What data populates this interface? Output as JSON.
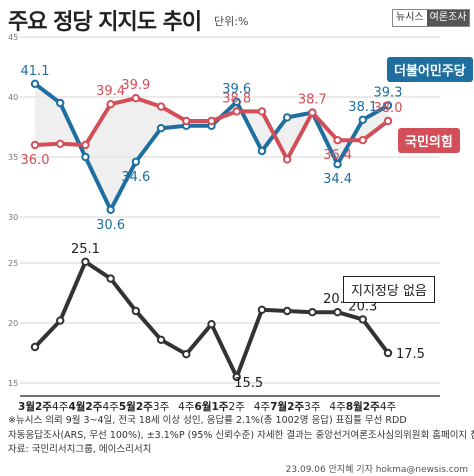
{
  "header": {
    "title": "주요 정당 지지도 추이",
    "unit": "단위:%",
    "brand_left": "뉴시스",
    "brand_right": "여론조사"
  },
  "chart_data": [
    {
      "type": "line",
      "categories": [
        "3월2주",
        "4주",
        "4월2주",
        "4주",
        "5월2주",
        "3주",
        "4주",
        "6월1주",
        "2주",
        "4주",
        "7월2주",
        "3주",
        "4주",
        "8월2주",
        "4주"
      ],
      "ylim": [
        30,
        45
      ],
      "yticks": [
        30,
        35,
        40,
        45
      ],
      "series": [
        {
          "name": "더불어민주당",
          "color": "#1e6fa0",
          "values": [
            41.1,
            39.5,
            35.0,
            30.6,
            34.6,
            37.4,
            37.6,
            37.6,
            39.6,
            35.5,
            38.3,
            38.7,
            34.4,
            38.1,
            39.3
          ]
        },
        {
          "name": "국민의힘",
          "color": "#d24e58",
          "values": [
            36.0,
            36.1,
            36.0,
            39.4,
            39.9,
            39.2,
            38.0,
            38.0,
            38.8,
            38.8,
            34.8,
            38.7,
            36.4,
            36.4,
            38.0
          ]
        }
      ],
      "data_labels": [
        {
          "series": 0,
          "index": 0,
          "text": "41.1"
        },
        {
          "series": 0,
          "index": 3,
          "text": "30.6"
        },
        {
          "series": 0,
          "index": 4,
          "text": "34.6"
        },
        {
          "series": 0,
          "index": 8,
          "text": "39.6"
        },
        {
          "series": 0,
          "index": 12,
          "text": "34.4"
        },
        {
          "series": 0,
          "index": 13,
          "text": "38.1"
        },
        {
          "series": 0,
          "index": 14,
          "text": "39.3"
        },
        {
          "series": 1,
          "index": 0,
          "text": "36.0"
        },
        {
          "series": 1,
          "index": 3,
          "text": "39.4"
        },
        {
          "series": 1,
          "index": 4,
          "text": "39.9"
        },
        {
          "series": 1,
          "index": 8,
          "text": "38.8"
        },
        {
          "series": 1,
          "index": 11,
          "text": "38.7"
        },
        {
          "series": 1,
          "index": 12,
          "text": "36.4"
        },
        {
          "series": 1,
          "index": 14,
          "text": "38.0"
        }
      ]
    },
    {
      "type": "line",
      "categories": [
        "3월2주",
        "4주",
        "4월2주",
        "4주",
        "5월2주",
        "3주",
        "4주",
        "6월1주",
        "2주",
        "4주",
        "7월2주",
        "3주",
        "4주",
        "8월2주",
        "4주"
      ],
      "ylim": [
        15,
        25
      ],
      "yticks": [
        15,
        20,
        25
      ],
      "series": [
        {
          "name": "지지정당 없음",
          "color": "#333333",
          "values": [
            18.0,
            20.2,
            25.1,
            23.7,
            21.0,
            18.6,
            17.4,
            19.9,
            15.5,
            21.1,
            21.0,
            20.9,
            20.9,
            20.3,
            17.5
          ]
        }
      ],
      "data_labels": [
        {
          "series": 0,
          "index": 2,
          "text": "25.1"
        },
        {
          "series": 0,
          "index": 8,
          "text": "15.5"
        },
        {
          "series": 0,
          "index": 12,
          "text": "20.9"
        },
        {
          "series": 0,
          "index": 13,
          "text": "20.3"
        },
        {
          "series": 0,
          "index": 14,
          "text": "17.5"
        }
      ]
    }
  ],
  "notes": {
    "line1": "※뉴시스 의뢰 9월 3~4일, 전국 18세 이상 성인, 응답률 2.1%(총 1002명 응답) 표집틀 무선 RDD",
    "line2": "자동응답조사(ARS, 무선 100%), ±3.1%P (95% 신뢰수준) 자세한 결과는 중앙선거여론조사심의위원회 홈페이지 참조",
    "line3": "자료: 국민리서치그룹, 에이스리서치"
  },
  "credit": "23.09.06 안지혜 기자 hokma@newsis.com"
}
